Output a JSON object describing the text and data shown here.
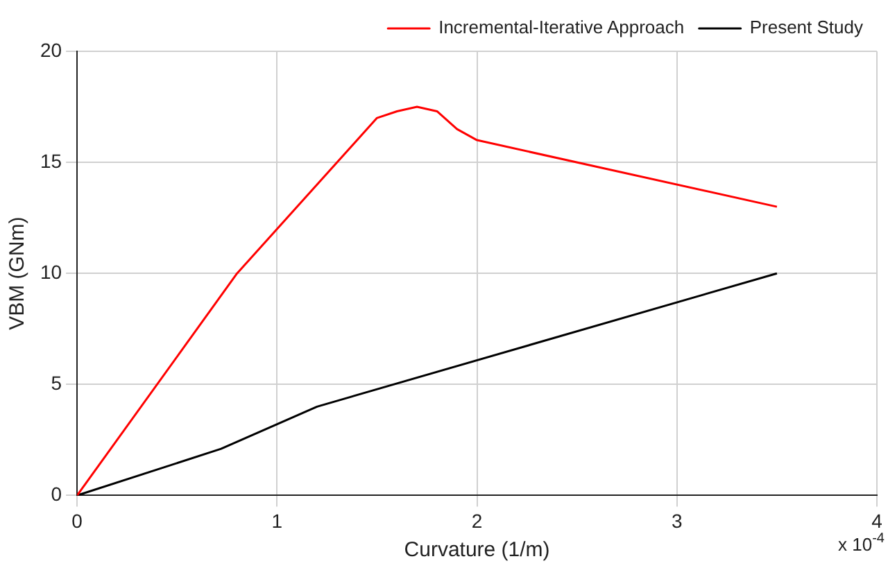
{
  "chart_data": {
    "type": "line",
    "xlabel": "Curvature (1/m)",
    "ylabel": "VBM (GNm)",
    "xlim": [
      0,
      4
    ],
    "xticks": [
      0,
      1,
      2,
      3,
      4
    ],
    "ylim": [
      0,
      20
    ],
    "yticks": [
      0,
      5,
      10,
      15,
      20
    ],
    "grid": true,
    "legend": "top right",
    "marker": "none",
    "line_style": "solid",
    "annotations": [
      "x 10$^{-4}$"
    ],
    "series": [
      {
        "name": "Incremental-Iterative Approach",
        "color": "#ff0000",
        "x": [
          0,
          0.8,
          1.5,
          1.6,
          1.7,
          1.8,
          1.9,
          2.0,
          3.5
        ],
        "values": [
          0,
          10,
          17,
          17.3,
          17.5,
          17.3,
          16.5,
          16,
          13
        ]
      },
      {
        "name": "Present Study",
        "color": "#000000",
        "x": [
          0,
          0.72,
          1.2,
          3.5
        ],
        "values": [
          0,
          2.1,
          4,
          10
        ]
      }
    ]
  }
}
